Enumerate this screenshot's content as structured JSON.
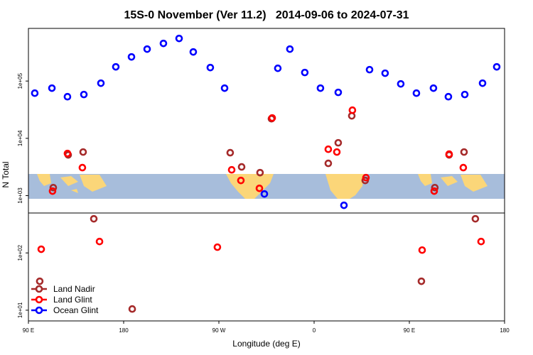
{
  "chart_data": {
    "type": "scatter",
    "title": "15S-0 November (Ver 11.2)   2014-09-06 to 2024-07-31",
    "x_label": "Longitude (deg E)",
    "y_label": "N Total",
    "log_y": true,
    "legend": "bottomleft",
    "xlim": [
      90,
      540
    ],
    "xticks": [
      {
        "value": 90,
        "label": "90 E"
      },
      {
        "value": 180,
        "label": "180"
      },
      {
        "value": 270,
        "label": "90 W"
      },
      {
        "value": 360,
        "label": "0"
      },
      {
        "value": 450,
        "label": "90 E"
      },
      {
        "value": 540,
        "label": "180"
      }
    ],
    "ylim": [
      6.5,
      830000
    ],
    "yticks": [
      {
        "value": 10,
        "label": "1e+01"
      },
      {
        "value": 100,
        "label": "1e+02"
      },
      {
        "value": 1000,
        "label": "1e+03"
      },
      {
        "value": 10000,
        "label": "1e+04"
      },
      {
        "value": 100000,
        "label": "1e+05"
      }
    ],
    "series": [
      {
        "name": "Land Nadir",
        "color": "#a52a2a",
        "x": [
          100.7,
          113.5,
          127.6,
          141.7,
          151.8,
          188.1,
          280.7,
          291.5,
          308.9,
          319.7,
          373.4,
          382.8,
          395.6,
          408.3,
          461.4,
          474.1,
          487.6,
          501.7,
          512.4
        ],
        "values": [
          32,
          1380,
          5140,
          5770,
          394,
          10.5,
          5610,
          3170,
          2520,
          22000,
          3660,
          8360,
          24700,
          1840,
          32,
          1380,
          5140,
          5770,
          394
        ]
      },
      {
        "name": "Land Glint",
        "color": "#ff0000",
        "x": [
          102.1,
          112.8,
          126.9,
          141.0,
          157.2,
          268.6,
          282.1,
          290.8,
          308.3,
          320.4,
          373.4,
          381.5,
          396.2,
          409.0,
          462.1,
          473.5,
          487.6,
          501.0,
          517.8
        ],
        "values": [
          116,
          1200,
          5450,
          3080,
          158,
          126,
          2820,
          1840,
          1340,
          22700,
          6450,
          5770,
          31000,
          2060,
          112,
          1200,
          5300,
          3080,
          158
        ]
      },
      {
        "name": "Ocean Glint",
        "color": "#0000ff",
        "x": [
          96.0,
          112.2,
          126.9,
          142.4,
          158.5,
          172.6,
          187.4,
          202.2,
          217.6,
          232.4,
          245.8,
          261.9,
          275.4,
          313.0,
          325.7,
          337.1,
          351.2,
          366.0,
          382.8,
          388.2,
          412.4,
          427.1,
          441.9,
          456.7,
          472.8,
          486.9,
          502.4,
          519.2,
          532.6
        ],
        "values": [
          61500,
          75200,
          53300,
          58200,
          91800,
          177000,
          264000,
          361000,
          454000,
          554000,
          322000,
          172000,
          75200,
          1070,
          167000,
          361000,
          141000,
          75200,
          63400,
          678,
          158000,
          137000,
          89200,
          61500,
          75200,
          53300,
          58200,
          91800,
          177000
        ]
      }
    ]
  }
}
